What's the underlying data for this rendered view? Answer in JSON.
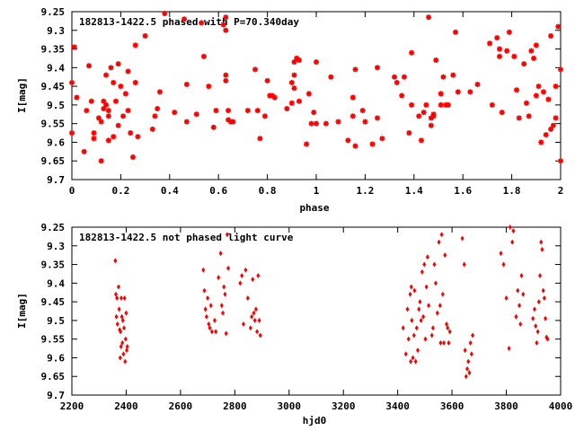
{
  "chart_data": [
    {
      "type": "scatter",
      "title": "182813-1422.5 phased with P=70.340day",
      "xlabel": "phase",
      "ylabel": "I[mag]",
      "xlim": [
        0,
        2
      ],
      "ylim": [
        9.7,
        9.25
      ],
      "y_inverted": true,
      "grid": false,
      "marker_color": "#ff0000",
      "xticks": [
        "0",
        "0.2",
        "0.4",
        "0.6",
        "0.8",
        "1",
        "1.2",
        "1.4",
        "1.6",
        "1.8",
        "2"
      ],
      "yticks": [
        "9.25",
        "9.3",
        "9.35",
        "9.4",
        "9.45",
        "9.5",
        "9.55",
        "9.6",
        "9.65",
        "9.7"
      ],
      "points": [
        [
          0.0,
          9.575
        ],
        [
          0.0,
          9.44
        ],
        [
          0.01,
          9.345
        ],
        [
          0.02,
          9.48
        ],
        [
          0.05,
          9.625
        ],
        [
          0.06,
          9.515
        ],
        [
          0.07,
          9.395
        ],
        [
          0.08,
          9.49
        ],
        [
          0.09,
          9.59
        ],
        [
          0.09,
          9.575
        ],
        [
          0.11,
          9.535
        ],
        [
          0.12,
          9.65
        ],
        [
          0.12,
          9.545
        ],
        [
          0.13,
          9.49
        ],
        [
          0.13,
          9.51
        ],
        [
          0.14,
          9.42
        ],
        [
          0.14,
          9.5
        ],
        [
          0.15,
          9.515
        ],
        [
          0.15,
          9.53
        ],
        [
          0.15,
          9.595
        ],
        [
          0.16,
          9.4
        ],
        [
          0.17,
          9.44
        ],
        [
          0.17,
          9.585
        ],
        [
          0.18,
          9.49
        ],
        [
          0.19,
          9.39
        ],
        [
          0.19,
          9.555
        ],
        [
          0.2,
          9.45
        ],
        [
          0.21,
          9.53
        ],
        [
          0.22,
          9.47
        ],
        [
          0.23,
          9.41
        ],
        [
          0.23,
          9.515
        ],
        [
          0.24,
          9.575
        ],
        [
          0.25,
          9.64
        ],
        [
          0.26,
          9.44
        ],
        [
          0.26,
          9.34
        ],
        [
          0.27,
          9.585
        ],
        [
          0.3,
          9.315
        ],
        [
          0.33,
          9.565
        ],
        [
          0.34,
          9.53
        ],
        [
          0.35,
          9.51
        ],
        [
          0.36,
          9.465
        ],
        [
          0.38,
          9.255
        ],
        [
          0.42,
          9.52
        ],
        [
          0.46,
          9.27
        ],
        [
          0.47,
          9.545
        ],
        [
          0.47,
          9.445
        ],
        [
          0.51,
          9.525
        ],
        [
          0.53,
          9.28
        ],
        [
          0.54,
          9.37
        ],
        [
          0.56,
          9.45
        ],
        [
          0.58,
          9.56
        ],
        [
          0.59,
          9.515
        ],
        [
          0.62,
          9.285
        ],
        [
          0.63,
          9.265
        ],
        [
          0.63,
          9.3
        ],
        [
          0.63,
          9.42
        ],
        [
          0.63,
          9.435
        ],
        [
          0.64,
          9.515
        ],
        [
          0.64,
          9.54
        ],
        [
          0.65,
          9.545
        ],
        [
          0.66,
          9.545
        ],
        [
          0.72,
          9.515
        ],
        [
          0.75,
          9.405
        ],
        [
          0.76,
          9.515
        ],
        [
          0.77,
          9.59
        ],
        [
          0.79,
          9.53
        ],
        [
          0.8,
          9.435
        ],
        [
          0.81,
          9.475
        ],
        [
          0.82,
          9.475
        ],
        [
          0.83,
          9.48
        ],
        [
          0.88,
          9.51
        ],
        [
          0.9,
          9.44
        ],
        [
          0.9,
          9.495
        ],
        [
          0.91,
          9.385
        ],
        [
          0.91,
          9.42
        ],
        [
          0.91,
          9.455
        ],
        [
          0.92,
          9.375
        ],
        [
          0.93,
          9.38
        ],
        [
          0.93,
          9.49
        ],
        [
          0.96,
          9.605
        ],
        [
          0.97,
          9.47
        ],
        [
          0.98,
          9.55
        ],
        [
          0.99,
          9.52
        ],
        [
          1.0,
          9.385
        ],
        [
          1.0,
          9.55
        ],
        [
          1.04,
          9.55
        ],
        [
          1.06,
          9.425
        ],
        [
          1.09,
          9.545
        ],
        [
          1.13,
          9.595
        ],
        [
          1.15,
          9.48
        ],
        [
          1.15,
          9.53
        ],
        [
          1.16,
          9.61
        ],
        [
          1.16,
          9.405
        ],
        [
          1.19,
          9.515
        ],
        [
          1.2,
          9.545
        ],
        [
          1.23,
          9.605
        ],
        [
          1.25,
          9.4
        ],
        [
          1.25,
          9.535
        ],
        [
          1.27,
          9.59
        ],
        [
          1.32,
          9.425
        ],
        [
          1.33,
          9.44
        ],
        [
          1.35,
          9.475
        ],
        [
          1.36,
          9.425
        ],
        [
          1.38,
          9.575
        ],
        [
          1.39,
          9.36
        ],
        [
          1.39,
          9.5
        ],
        [
          1.42,
          9.53
        ],
        [
          1.43,
          9.595
        ],
        [
          1.44,
          9.52
        ],
        [
          1.45,
          9.5
        ],
        [
          1.46,
          9.265
        ],
        [
          1.47,
          9.555
        ],
        [
          1.47,
          9.535
        ],
        [
          1.48,
          9.525
        ],
        [
          1.48,
          9.53
        ],
        [
          1.49,
          9.38
        ],
        [
          1.51,
          9.5
        ],
        [
          1.51,
          9.47
        ],
        [
          1.52,
          9.425
        ],
        [
          1.53,
          9.5
        ],
        [
          1.54,
          9.5
        ],
        [
          1.56,
          9.42
        ],
        [
          1.57,
          9.305
        ],
        [
          1.58,
          9.465
        ],
        [
          1.63,
          9.465
        ],
        [
          1.66,
          9.445
        ],
        [
          1.71,
          9.335
        ],
        [
          1.72,
          9.5
        ],
        [
          1.74,
          9.32
        ],
        [
          1.75,
          9.37
        ],
        [
          1.75,
          9.35
        ],
        [
          1.76,
          9.52
        ],
        [
          1.78,
          9.355
        ],
        [
          1.79,
          9.305
        ],
        [
          1.81,
          9.37
        ],
        [
          1.82,
          9.46
        ],
        [
          1.83,
          9.535
        ],
        [
          1.85,
          9.39
        ],
        [
          1.86,
          9.495
        ],
        [
          1.87,
          9.53
        ],
        [
          1.88,
          9.355
        ],
        [
          1.89,
          9.375
        ],
        [
          1.9,
          9.34
        ],
        [
          1.9,
          9.475
        ],
        [
          1.91,
          9.45
        ],
        [
          1.92,
          9.6
        ],
        [
          1.93,
          9.465
        ],
        [
          1.94,
          9.58
        ],
        [
          1.95,
          9.485
        ],
        [
          1.96,
          9.565
        ],
        [
          1.96,
          9.315
        ],
        [
          1.97,
          9.555
        ],
        [
          1.98,
          9.45
        ],
        [
          1.98,
          9.535
        ],
        [
          1.99,
          9.29
        ],
        [
          2.0,
          9.405
        ],
        [
          2.0,
          9.65
        ]
      ]
    },
    {
      "type": "scatter",
      "title": "182813-1422.5 not phased light curve",
      "xlabel": "hjd0",
      "ylabel": "I[mag]",
      "xlim": [
        2200,
        4000
      ],
      "ylim": [
        9.7,
        9.25
      ],
      "y_inverted": true,
      "grid": false,
      "marker_color": "#ff0000",
      "xticks": [
        "2200",
        "2400",
        "2600",
        "2800",
        "3000",
        "3200",
        "3400",
        "3600",
        "3800",
        "4000"
      ],
      "yticks": [
        "9.25",
        "9.3",
        "9.35",
        "9.4",
        "9.45",
        "9.5",
        "9.55",
        "9.6",
        "9.65",
        "9.7"
      ],
      "points": [
        [
          2360,
          9.34
        ],
        [
          2362,
          9.43
        ],
        [
          2364,
          9.49
        ],
        [
          2366,
          9.44
        ],
        [
          2368,
          9.51
        ],
        [
          2372,
          9.41
        ],
        [
          2374,
          9.47
        ],
        [
          2376,
          9.525
        ],
        [
          2378,
          9.6
        ],
        [
          2379,
          9.53
        ],
        [
          2381,
          9.57
        ],
        [
          2382,
          9.44
        ],
        [
          2384,
          9.49
        ],
        [
          2386,
          9.56
        ],
        [
          2388,
          9.5
        ],
        [
          2390,
          9.59
        ],
        [
          2392,
          9.52
        ],
        [
          2394,
          9.44
        ],
        [
          2396,
          9.61
        ],
        [
          2398,
          9.55
        ],
        [
          2400,
          9.48
        ],
        [
          2402,
          9.58
        ],
        [
          2404,
          9.57
        ],
        [
          2684,
          9.365
        ],
        [
          2688,
          9.42
        ],
        [
          2692,
          9.47
        ],
        [
          2696,
          9.49
        ],
        [
          2700,
          9.44
        ],
        [
          2704,
          9.51
        ],
        [
          2708,
          9.52
        ],
        [
          2712,
          9.46
        ],
        [
          2716,
          9.53
        ],
        [
          2726,
          9.5
        ],
        [
          2730,
          9.53
        ],
        [
          2740,
          9.385
        ],
        [
          2748,
          9.32
        ],
        [
          2752,
          9.46
        ],
        [
          2756,
          9.48
        ],
        [
          2760,
          9.41
        ],
        [
          2764,
          9.43
        ],
        [
          2768,
          9.535
        ],
        [
          2772,
          9.27
        ],
        [
          2776,
          9.36
        ],
        [
          2820,
          9.4
        ],
        [
          2826,
          9.38
        ],
        [
          2832,
          9.51
        ],
        [
          2840,
          9.365
        ],
        [
          2848,
          9.44
        ],
        [
          2858,
          9.52
        ],
        [
          2862,
          9.49
        ],
        [
          2866,
          9.39
        ],
        [
          2870,
          9.48
        ],
        [
          2874,
          9.5
        ],
        [
          2878,
          9.47
        ],
        [
          2882,
          9.53
        ],
        [
          2886,
          9.38
        ],
        [
          2890,
          9.5
        ],
        [
          2894,
          9.54
        ],
        [
          3420,
          9.52
        ],
        [
          3430,
          9.59
        ],
        [
          3436,
          9.47
        ],
        [
          3440,
          9.55
        ],
        [
          3446,
          9.43
        ],
        [
          3448,
          9.61
        ],
        [
          3450,
          9.41
        ],
        [
          3452,
          9.5
        ],
        [
          3456,
          9.6
        ],
        [
          3460,
          9.54
        ],
        [
          3462,
          9.42
        ],
        [
          3466,
          9.61
        ],
        [
          3470,
          9.52
        ],
        [
          3474,
          9.58
        ],
        [
          3478,
          9.47
        ],
        [
          3482,
          9.45
        ],
        [
          3486,
          9.5
        ],
        [
          3490,
          9.37
        ],
        [
          3494,
          9.49
        ],
        [
          3498,
          9.35
        ],
        [
          3502,
          9.55
        ],
        [
          3506,
          9.41
        ],
        [
          3510,
          9.33
        ],
        [
          3514,
          9.46
        ],
        [
          3526,
          9.54
        ],
        [
          3530,
          9.52
        ],
        [
          3535,
          9.35
        ],
        [
          3540,
          9.4
        ],
        [
          3546,
          9.48
        ],
        [
          3552,
          9.29
        ],
        [
          3556,
          9.46
        ],
        [
          3558,
          9.56
        ],
        [
          3562,
          9.27
        ],
        [
          3566,
          9.43
        ],
        [
          3570,
          9.56
        ],
        [
          3574,
          9.325
        ],
        [
          3580,
          9.51
        ],
        [
          3584,
          9.52
        ],
        [
          3588,
          9.56
        ],
        [
          3592,
          9.53
        ],
        [
          3638,
          9.28
        ],
        [
          3645,
          9.35
        ],
        [
          3648,
          9.58
        ],
        [
          3652,
          9.65
        ],
        [
          3656,
          9.63
        ],
        [
          3660,
          9.61
        ],
        [
          3664,
          9.64
        ],
        [
          3668,
          9.56
        ],
        [
          3672,
          9.59
        ],
        [
          3676,
          9.54
        ],
        [
          3780,
          9.32
        ],
        [
          3790,
          9.35
        ],
        [
          3800,
          9.44
        ],
        [
          3810,
          9.575
        ],
        [
          3814,
          9.25
        ],
        [
          3822,
          9.29
        ],
        [
          3826,
          9.26
        ],
        [
          3836,
          9.49
        ],
        [
          3842,
          9.42
        ],
        [
          3848,
          9.46
        ],
        [
          3852,
          9.51
        ],
        [
          3856,
          9.38
        ],
        [
          3862,
          9.43
        ],
        [
          3898,
          9.495
        ],
        [
          3904,
          9.47
        ],
        [
          3908,
          9.515
        ],
        [
          3912,
          9.56
        ],
        [
          3916,
          9.53
        ],
        [
          3920,
          9.45
        ],
        [
          3924,
          9.38
        ],
        [
          3928,
          9.29
        ],
        [
          3932,
          9.31
        ],
        [
          3936,
          9.42
        ],
        [
          3940,
          9.44
        ],
        [
          3944,
          9.495
        ],
        [
          3948,
          9.545
        ],
        [
          3952,
          9.55
        ]
      ]
    }
  ]
}
